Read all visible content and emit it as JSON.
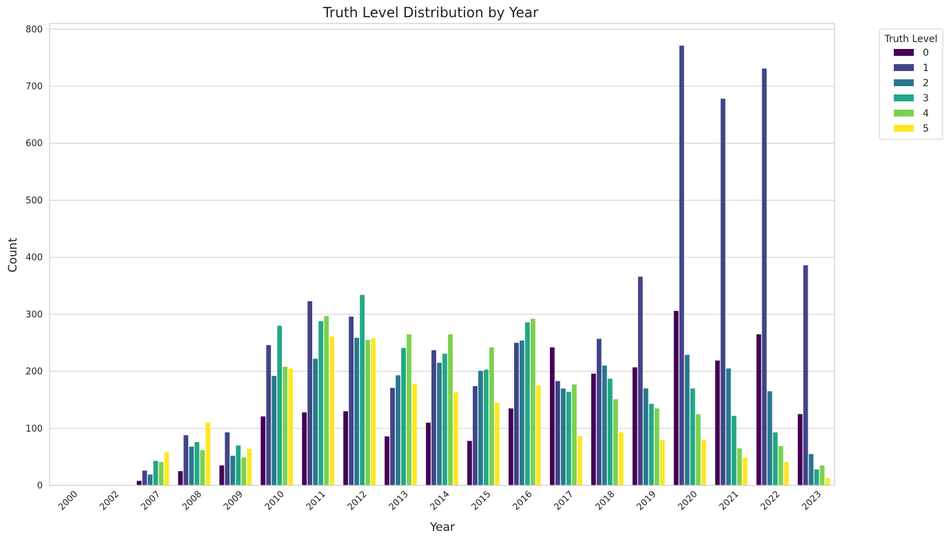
{
  "chart_data": {
    "type": "bar",
    "title": "Truth Level Distribution by Year",
    "xlabel": "Year",
    "ylabel": "Count",
    "ylim": [
      0,
      810
    ],
    "yticks": [
      0,
      100,
      200,
      300,
      400,
      500,
      600,
      700,
      800
    ],
    "grid": "horizontal",
    "legend": {
      "title": "Truth Level",
      "placement": "top-right, outside plot"
    },
    "categories": [
      "2000",
      "2002",
      "2007",
      "2008",
      "2009",
      "2010",
      "2011",
      "2012",
      "2013",
      "2014",
      "2015",
      "2016",
      "2017",
      "2018",
      "2019",
      "2020",
      "2021",
      "2022",
      "2023"
    ],
    "series": [
      {
        "name": "0",
        "color": "#440154",
        "values": [
          0,
          0,
          8,
          25,
          35,
          121,
          128,
          130,
          86,
          110,
          78,
          135,
          242,
          196,
          207,
          306,
          219,
          265,
          125
        ]
      },
      {
        "name": "1",
        "color": "#414487",
        "values": [
          0,
          0,
          26,
          88,
          93,
          246,
          323,
          296,
          171,
          237,
          174,
          250,
          183,
          257,
          366,
          771,
          678,
          731,
          386
        ]
      },
      {
        "name": "2",
        "color": "#2a788e",
        "values": [
          0,
          0,
          19,
          68,
          52,
          192,
          222,
          259,
          193,
          215,
          201,
          254,
          170,
          210,
          170,
          229,
          205,
          165,
          55
        ]
      },
      {
        "name": "3",
        "color": "#22a884",
        "values": [
          0,
          0,
          43,
          76,
          70,
          280,
          288,
          334,
          241,
          231,
          203,
          286,
          164,
          187,
          143,
          170,
          122,
          93,
          28
        ]
      },
      {
        "name": "4",
        "color": "#7ad151",
        "values": [
          0,
          0,
          41,
          62,
          49,
          208,
          297,
          255,
          265,
          265,
          242,
          292,
          177,
          151,
          135,
          125,
          65,
          69,
          35
        ]
      },
      {
        "name": "5",
        "color": "#fde725",
        "values": [
          0,
          0,
          58,
          110,
          64,
          205,
          261,
          258,
          178,
          163,
          145,
          175,
          87,
          93,
          80,
          80,
          49,
          41,
          13
        ]
      }
    ]
  }
}
